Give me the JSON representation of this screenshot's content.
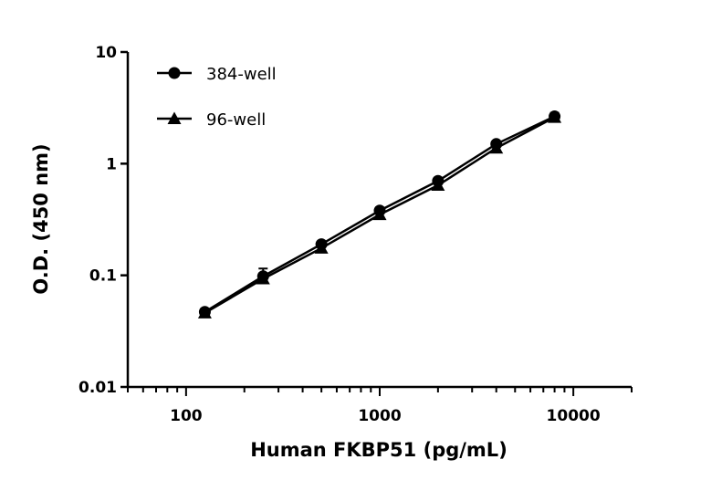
{
  "chart_data": {
    "type": "line",
    "title": "",
    "xlabel": "Human FKBP51 (pg/mL)",
    "ylabel": "O.D. (450 nm)",
    "xscale": "log",
    "yscale": "log",
    "xlim": [
      50,
      20000
    ],
    "ylim": [
      0.01,
      10
    ],
    "xticks": [
      100,
      1000,
      10000
    ],
    "xtick_labels": [
      "100",
      "1000",
      "10000"
    ],
    "yticks": [
      0.01,
      0.1,
      1,
      10
    ],
    "ytick_labels": [
      "0.01",
      "0.1",
      "1",
      "10"
    ],
    "grid": false,
    "legend_position": "top-left",
    "x": [
      125,
      250,
      500,
      1000,
      2000,
      4000,
      8000
    ],
    "series": [
      {
        "name": "384-well",
        "marker": "circle",
        "color": "#000000",
        "values": [
          0.047,
          0.098,
          0.19,
          0.38,
          0.7,
          1.5,
          2.65
        ],
        "error_upper": [
          0.049,
          0.115,
          0.2,
          0.4,
          0.73,
          1.55,
          2.85
        ]
      },
      {
        "name": "96-well",
        "marker": "triangle",
        "color": "#000000",
        "values": [
          0.046,
          0.093,
          0.175,
          0.35,
          0.64,
          1.38,
          2.6
        ],
        "error_upper": [
          0.047,
          0.097,
          0.18,
          0.36,
          0.66,
          1.42,
          2.7
        ]
      }
    ]
  }
}
